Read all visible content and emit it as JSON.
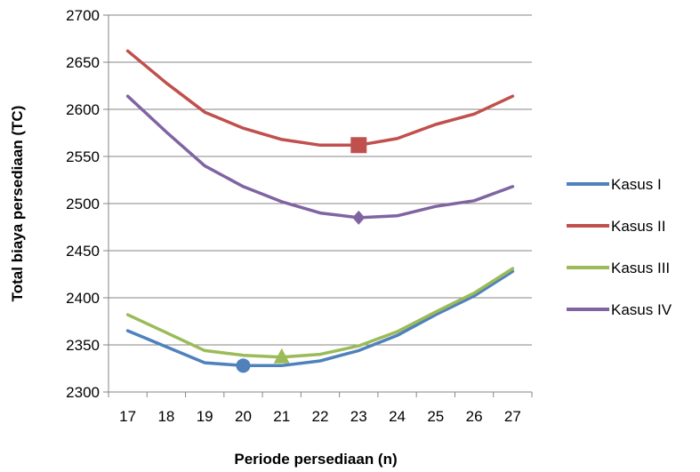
{
  "chart_data": {
    "type": "line",
    "title": "",
    "xlabel": "Periode persediaan (n)",
    "ylabel": "Total biaya persediaan (TC)",
    "x": [
      17,
      18,
      19,
      20,
      21,
      22,
      23,
      24,
      25,
      26,
      27
    ],
    "ylim": [
      2300,
      2700
    ],
    "y_ticks": [
      2300,
      2350,
      2400,
      2450,
      2500,
      2550,
      2600,
      2650,
      2700
    ],
    "grid": "horizontal",
    "legend_position": "right",
    "series": [
      {
        "name": "Kasus I",
        "color": "#4f81bd",
        "values": [
          2365,
          2348,
          2331,
          2328,
          2328,
          2333,
          2344,
          2360,
          2382,
          2402,
          2428
        ],
        "optimum": {
          "x": 20,
          "y": 2328,
          "marker": "circle"
        }
      },
      {
        "name": "Kasus II",
        "color": "#c0504d",
        "values": [
          2662,
          2628,
          2597,
          2580,
          2568,
          2562,
          2562,
          2569,
          2584,
          2595,
          2614
        ],
        "optimum": {
          "x": 23,
          "y": 2562,
          "marker": "square"
        }
      },
      {
        "name": "Kasus III",
        "color": "#9bbb59",
        "values": [
          2382,
          2363,
          2344,
          2339,
          2337,
          2340,
          2349,
          2364,
          2385,
          2405,
          2431
        ],
        "optimum": {
          "x": 21,
          "y": 2337,
          "marker": "triangle"
        }
      },
      {
        "name": "Kasus IV",
        "color": "#8064a2",
        "values": [
          2614,
          2576,
          2540,
          2518,
          2502,
          2490,
          2485,
          2487,
          2497,
          2503,
          2518
        ],
        "optimum": {
          "x": 23,
          "y": 2485,
          "marker": "diamond"
        }
      }
    ]
  }
}
